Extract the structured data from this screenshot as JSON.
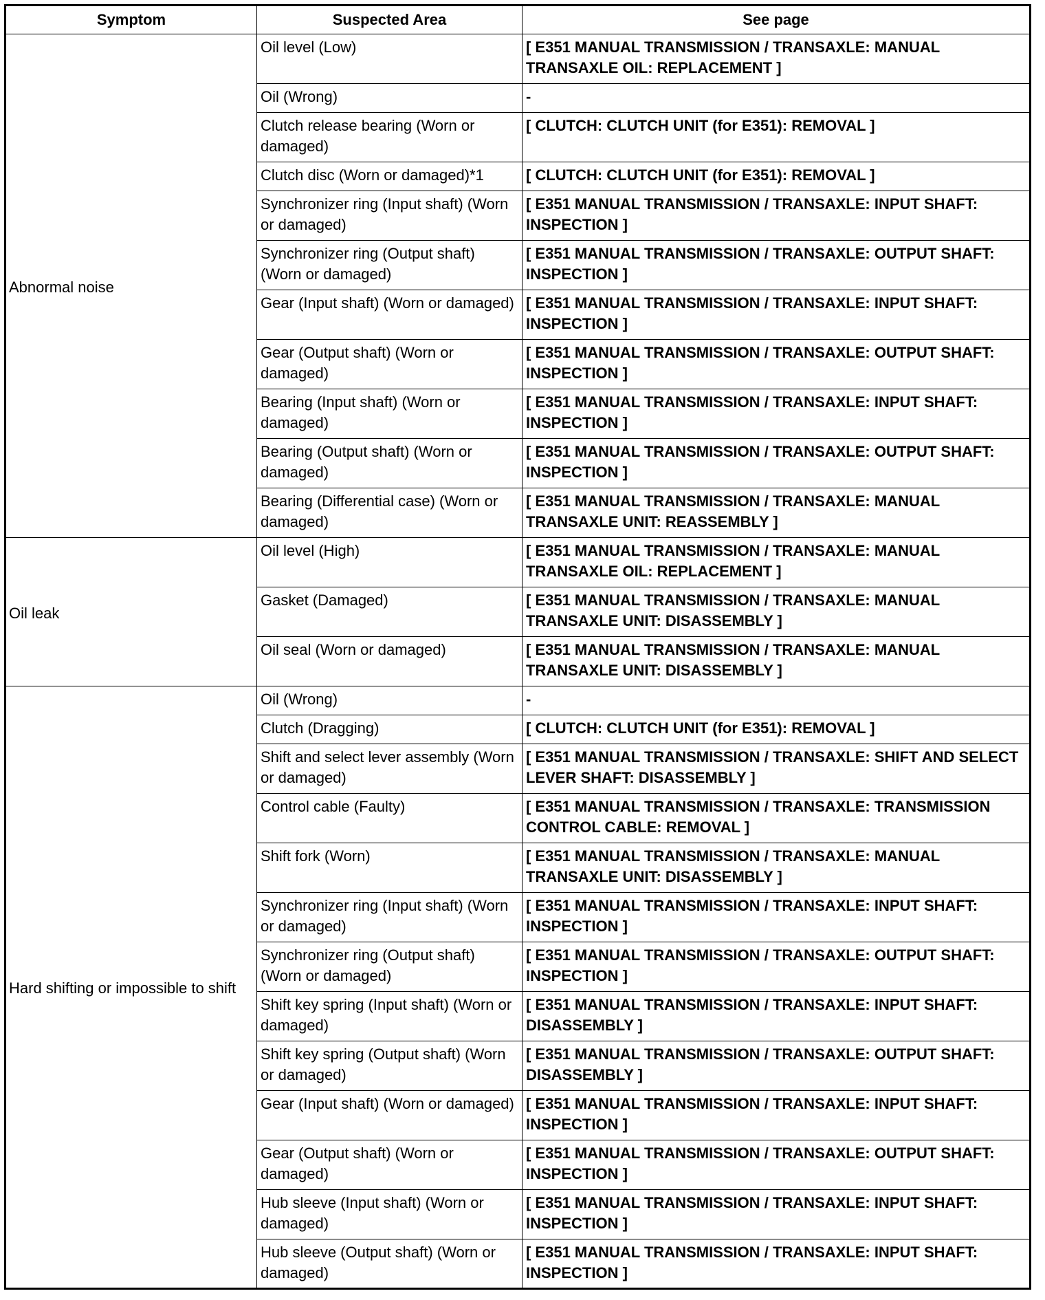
{
  "headers": [
    "Symptom",
    "Suspected Area",
    "See page"
  ],
  "groups": [
    {
      "symptom": "Abnormal noise",
      "rows": [
        {
          "area": "Oil level (Low)",
          "ref": "[ E351 MANUAL TRANSMISSION / TRANSAXLE: MANUAL TRANSAXLE OIL: REPLACEMENT ]",
          "lines": 2
        },
        {
          "area": "Oil (Wrong)",
          "ref": "-",
          "lines": 1
        },
        {
          "area": "Clutch release bearing (Worn or damaged)",
          "ref": "[ CLUTCH: CLUTCH UNIT (for E351): REMOVAL ]",
          "lines": 2
        },
        {
          "area": "Clutch disc (Worn or damaged)*1",
          "ref": "[ CLUTCH: CLUTCH UNIT (for E351): REMOVAL ]",
          "lines": 1
        },
        {
          "area": "Synchronizer ring (Input shaft) (Worn or damaged)",
          "ref": "[ E351 MANUAL TRANSMISSION / TRANSAXLE: INPUT SHAFT: INSPECTION ]",
          "lines": 2
        },
        {
          "area": "Synchronizer ring (Output shaft) (Worn or damaged)",
          "ref": "[ E351 MANUAL TRANSMISSION / TRANSAXLE: OUTPUT SHAFT: INSPECTION ]",
          "lines": 2
        },
        {
          "area": "Gear (Input shaft) (Worn or damaged)",
          "ref": "[ E351 MANUAL TRANSMISSION / TRANSAXLE: INPUT SHAFT: INSPECTION ]",
          "lines": 2
        },
        {
          "area": "Gear (Output shaft) (Worn or damaged)",
          "ref": "[ E351 MANUAL TRANSMISSION / TRANSAXLE: OUTPUT SHAFT: INSPECTION ]",
          "lines": 2
        },
        {
          "area": "Bearing (Input shaft) (Worn or damaged)",
          "ref": "[ E351 MANUAL TRANSMISSION / TRANSAXLE: INPUT SHAFT: INSPECTION ]",
          "lines": 2
        },
        {
          "area": "Bearing (Output shaft) (Worn or damaged)",
          "ref": "[ E351 MANUAL TRANSMISSION / TRANSAXLE: OUTPUT SHAFT: INSPECTION ]",
          "lines": 2
        },
        {
          "area": "Bearing (Differential case) (Worn or damaged)",
          "ref": "[ E351 MANUAL TRANSMISSION / TRANSAXLE: MANUAL TRANSAXLE UNIT: REASSEMBLY ]",
          "lines": 2
        }
      ]
    },
    {
      "symptom": "Oil leak",
      "rows": [
        {
          "area": "Oil level (High)",
          "ref": "[ E351 MANUAL TRANSMISSION / TRANSAXLE: MANUAL TRANSAXLE OIL: REPLACEMENT ]",
          "lines": 2
        },
        {
          "area": "Gasket (Damaged)",
          "ref": "[ E351 MANUAL TRANSMISSION / TRANSAXLE: MANUAL TRANSAXLE UNIT: DISASSEMBLY ]",
          "lines": 2
        },
        {
          "area": "Oil seal (Worn or damaged)",
          "ref": "[ E351 MANUAL TRANSMISSION / TRANSAXLE: MANUAL TRANSAXLE UNIT: DISASSEMBLY ]",
          "lines": 2
        }
      ]
    },
    {
      "symptom": "Hard shifting or impossible to shift",
      "rows": [
        {
          "area": "Oil (Wrong)",
          "ref": "-",
          "lines": 1
        },
        {
          "area": "Clutch (Dragging)",
          "ref": "[ CLUTCH: CLUTCH UNIT (for E351): REMOVAL ]",
          "lines": 1
        },
        {
          "area": "Shift and select lever assembly (Worn or damaged)",
          "ref": "[ E351 MANUAL TRANSMISSION / TRANSAXLE: SHIFT AND SELECT LEVER SHAFT: DISASSEMBLY ]",
          "lines": 2
        },
        {
          "area": "Control cable (Faulty)",
          "ref": "[ E351 MANUAL TRANSMISSION / TRANSAXLE: TRANSMISSION CONTROL CABLE: REMOVAL ]",
          "lines": 2
        },
        {
          "area": "Shift fork (Worn)",
          "ref": "[ E351 MANUAL TRANSMISSION / TRANSAXLE: MANUAL TRANSAXLE UNIT: DISASSEMBLY ]",
          "lines": 2
        },
        {
          "area": "Synchronizer ring (Input shaft) (Worn or damaged)",
          "ref": "[ E351 MANUAL TRANSMISSION / TRANSAXLE: INPUT SHAFT: INSPECTION ]",
          "lines": 2
        },
        {
          "area": "Synchronizer ring (Output shaft) (Worn or damaged)",
          "ref": "[ E351 MANUAL TRANSMISSION / TRANSAXLE: OUTPUT SHAFT: INSPECTION ]",
          "lines": 2
        },
        {
          "area": "Shift key spring (Input shaft) (Worn or damaged)",
          "ref": "[ E351 MANUAL TRANSMISSION / TRANSAXLE: INPUT SHAFT: DISASSEMBLY ]",
          "lines": 2
        },
        {
          "area": "Shift key spring (Output shaft) (Worn or damaged)",
          "ref": "[ E351 MANUAL TRANSMISSION / TRANSAXLE: OUTPUT SHAFT: DISASSEMBLY ]",
          "lines": 2
        },
        {
          "area": "Gear (Input shaft) (Worn or damaged)",
          "ref": "[ E351 MANUAL TRANSMISSION / TRANSAXLE: INPUT SHAFT: INSPECTION ]",
          "lines": 2
        },
        {
          "area": "Gear (Output shaft) (Worn or damaged)",
          "ref": "[ E351 MANUAL TRANSMISSION / TRANSAXLE: OUTPUT SHAFT: INSPECTION ]",
          "lines": 2
        },
        {
          "area": "Hub sleeve (Input shaft) (Worn or damaged)",
          "ref": "[ E351 MANUAL TRANSMISSION / TRANSAXLE: INPUT SHAFT: INSPECTION ]",
          "lines": 2
        },
        {
          "area": "Hub sleeve (Output shaft) (Worn or damaged)",
          "ref": "[ E351 MANUAL TRANSMISSION / TRANSAXLE: INPUT SHAFT: INSPECTION ]",
          "lines": 2
        }
      ]
    }
  ]
}
